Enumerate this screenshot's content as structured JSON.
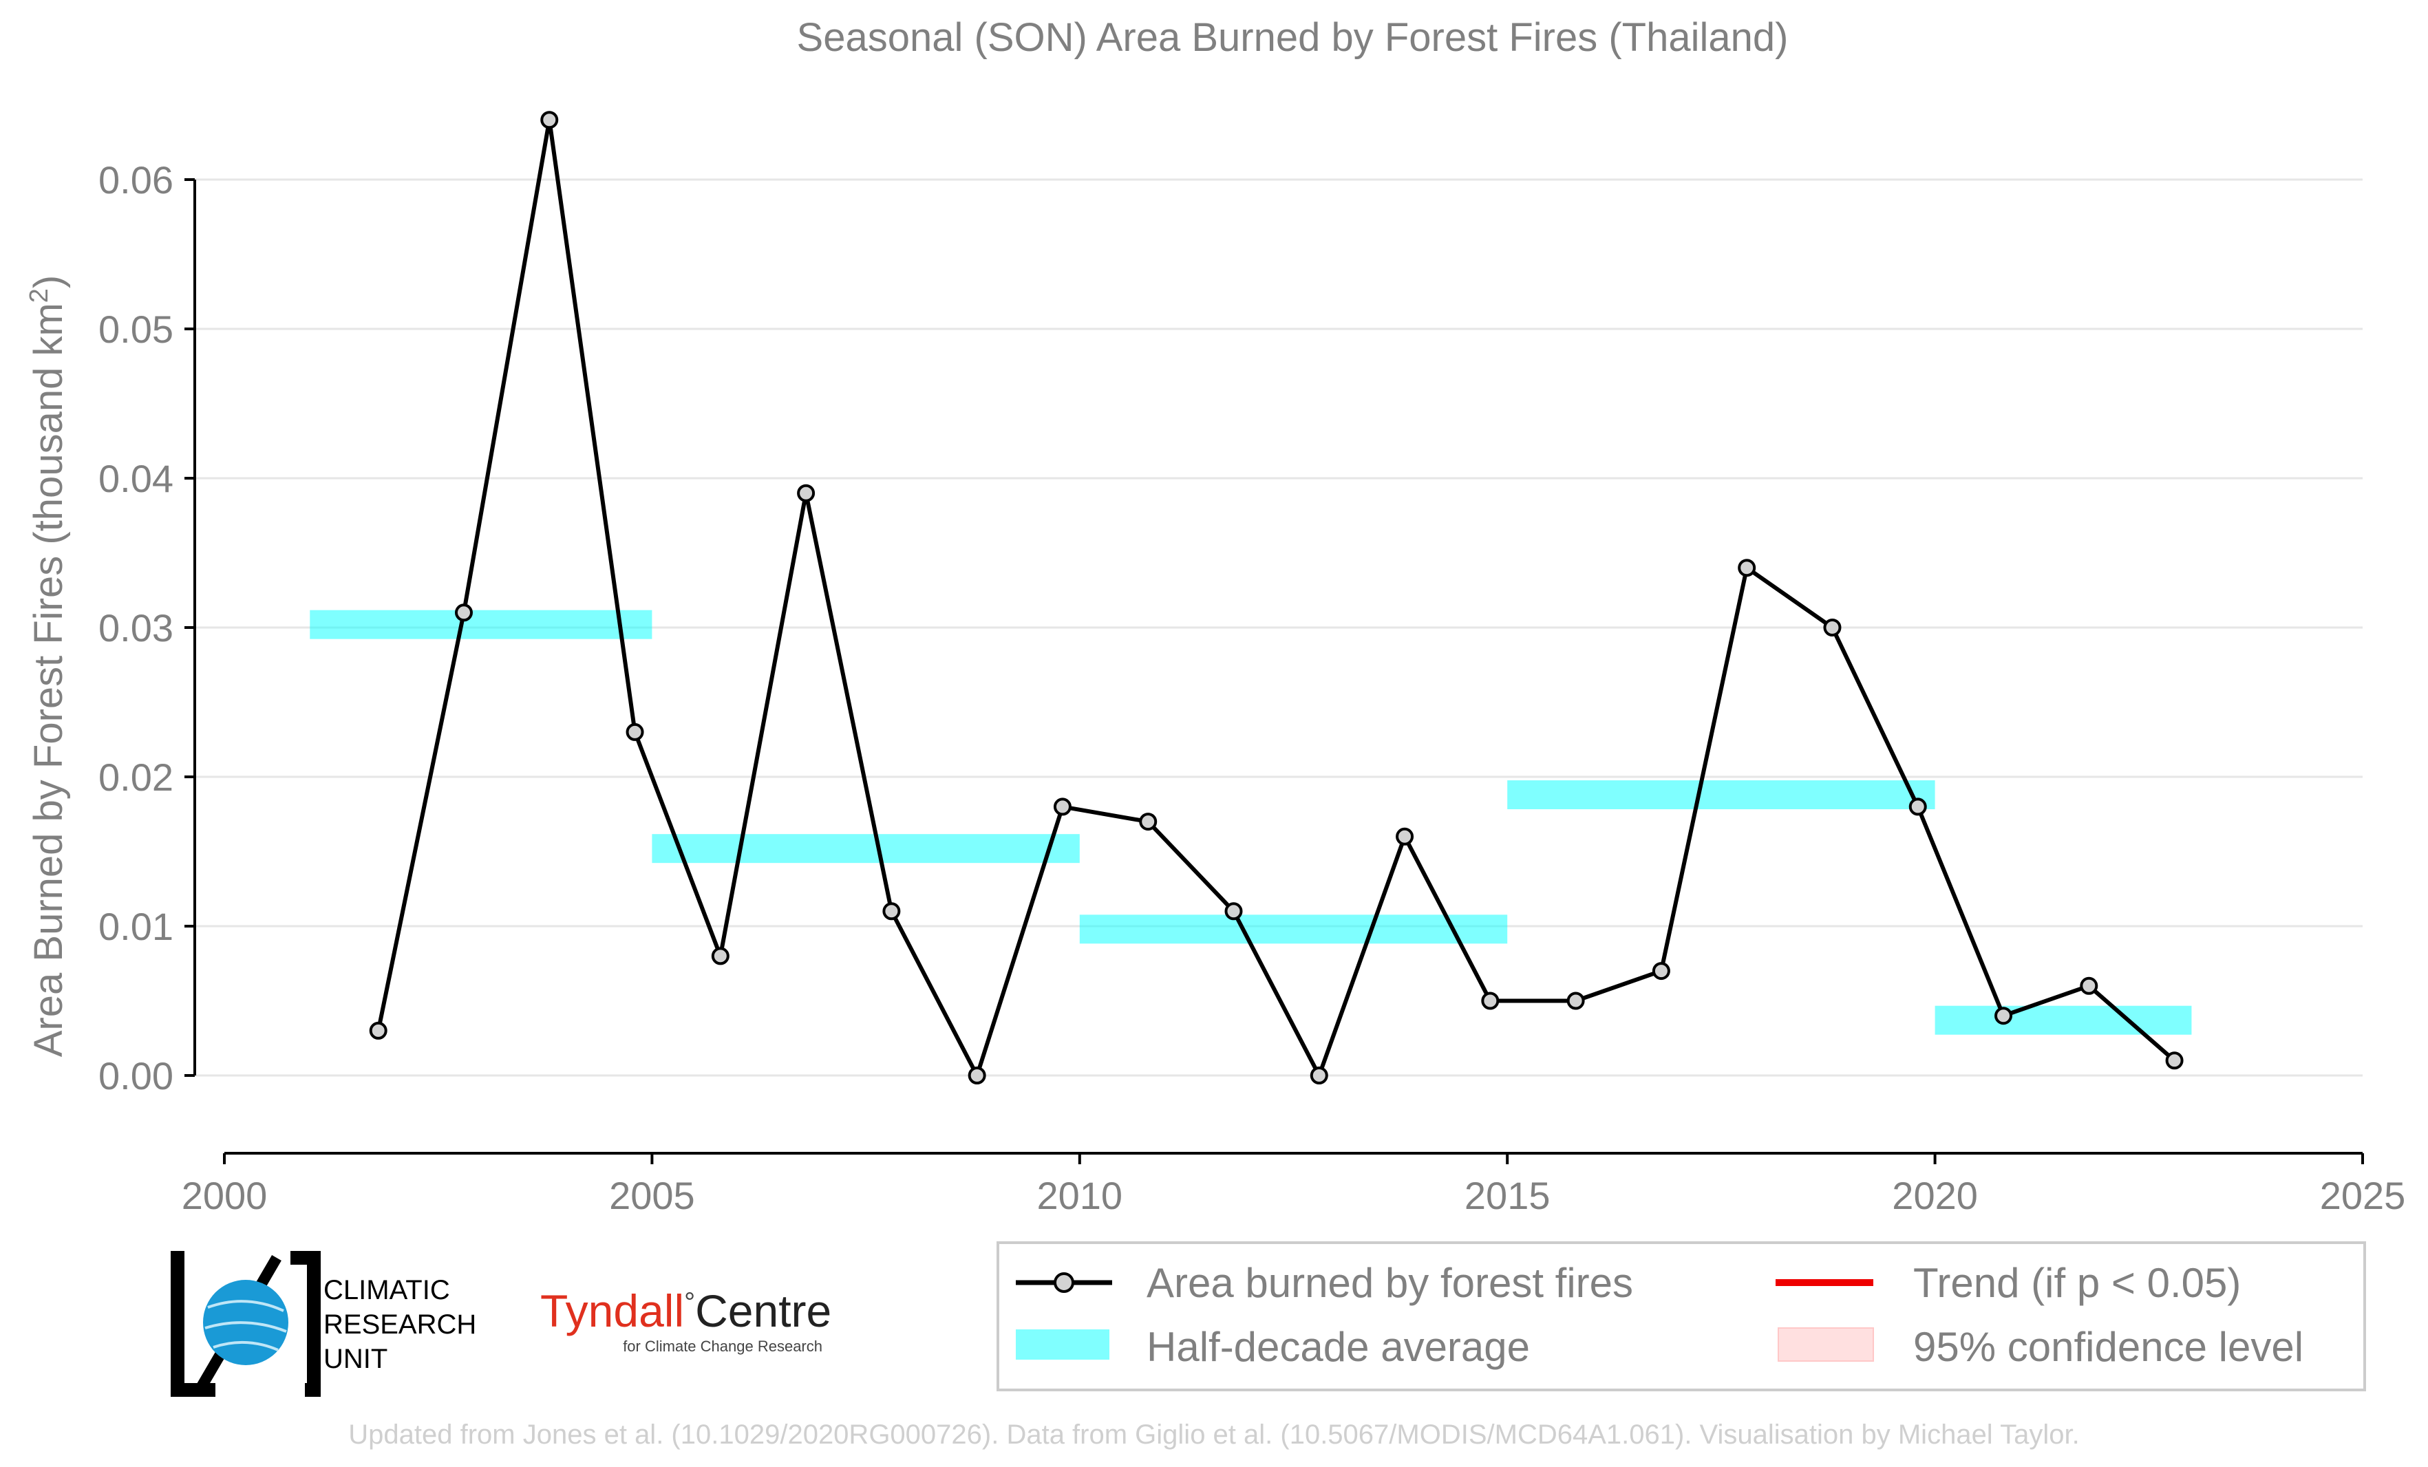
{
  "chart_data": {
    "type": "line",
    "title": "Seasonal (SON) Area Burned by Forest Fires (Thailand)",
    "ylabel": "Area Burned by Forest Fires (thousand km",
    "ylabel_sup": "2",
    "ylabel_close": ")",
    "xlabel": "",
    "xlim": [
      2000,
      2025
    ],
    "ylim": [
      -0.005,
      0.066
    ],
    "xticks": [
      2000,
      2005,
      2010,
      2015,
      2020,
      2025
    ],
    "xtick_labels": [
      "2000",
      "2005",
      "2010",
      "2015",
      "2020",
      "2025"
    ],
    "yticks": [
      0.0,
      0.01,
      0.02,
      0.03,
      0.04,
      0.05,
      0.06
    ],
    "ytick_labels": [
      "0.00",
      "0.01",
      "0.02",
      "0.03",
      "0.04",
      "0.05",
      "0.06"
    ],
    "grid": "horizontal",
    "series": [
      {
        "name": "Area burned by forest fires",
        "x": [
          2001.8,
          2002.8,
          2003.8,
          2004.8,
          2005.8,
          2006.8,
          2007.8,
          2008.8,
          2009.8,
          2010.8,
          2011.8,
          2012.8,
          2013.8,
          2014.8,
          2015.8,
          2016.8,
          2017.8,
          2018.8,
          2019.8,
          2020.8,
          2021.8,
          2022.8
        ],
        "values": [
          0.003,
          0.031,
          0.064,
          0.023,
          0.008,
          0.039,
          0.011,
          0.0,
          0.018,
          0.017,
          0.011,
          0.0,
          0.016,
          0.005,
          0.005,
          0.007,
          0.034,
          0.03,
          0.018,
          0.004,
          0.006,
          0.001
        ],
        "color": "#000000",
        "marker_fill": "#d3d3d3"
      }
    ],
    "half_decade_average": {
      "name": "Half-decade average",
      "color": "#00ffff",
      "segments": [
        {
          "x_start": 2001,
          "x_end": 2005,
          "value": 0.0302
        },
        {
          "x_start": 2005,
          "x_end": 2010,
          "value": 0.0152
        },
        {
          "x_start": 2010,
          "x_end": 2015,
          "value": 0.0098
        },
        {
          "x_start": 2015,
          "x_end": 2020,
          "value": 0.0188
        },
        {
          "x_start": 2020,
          "x_end": 2023,
          "value": 0.0037
        }
      ]
    },
    "legend": {
      "placement": "bottom-right",
      "entries": [
        {
          "label": "Area burned by forest fires",
          "kind": "line-marker",
          "color": "#000000"
        },
        {
          "label": "Trend (if p < 0.05)",
          "kind": "line",
          "color": "#ee0000"
        },
        {
          "label": "Half-decade average",
          "kind": "band",
          "color": "#80ffff"
        },
        {
          "label": "95% confidence level",
          "kind": "patch",
          "color": "#ffe0e0"
        }
      ]
    }
  },
  "logos": {
    "cru_lines": [
      "CLIMATIC",
      "RESEARCH",
      "UNIT"
    ],
    "tyndall_red": "Tyndall",
    "tyndall_degree": "°",
    "tyndall_black": "Centre",
    "tyndall_sub": "for Climate Change Research"
  },
  "credit": "Updated from Jones et al. (10.1029/2020RG000726). Data from Giglio et al. (10.5067/MODIS/MCD64A1.061). Visualisation by Michael Taylor."
}
